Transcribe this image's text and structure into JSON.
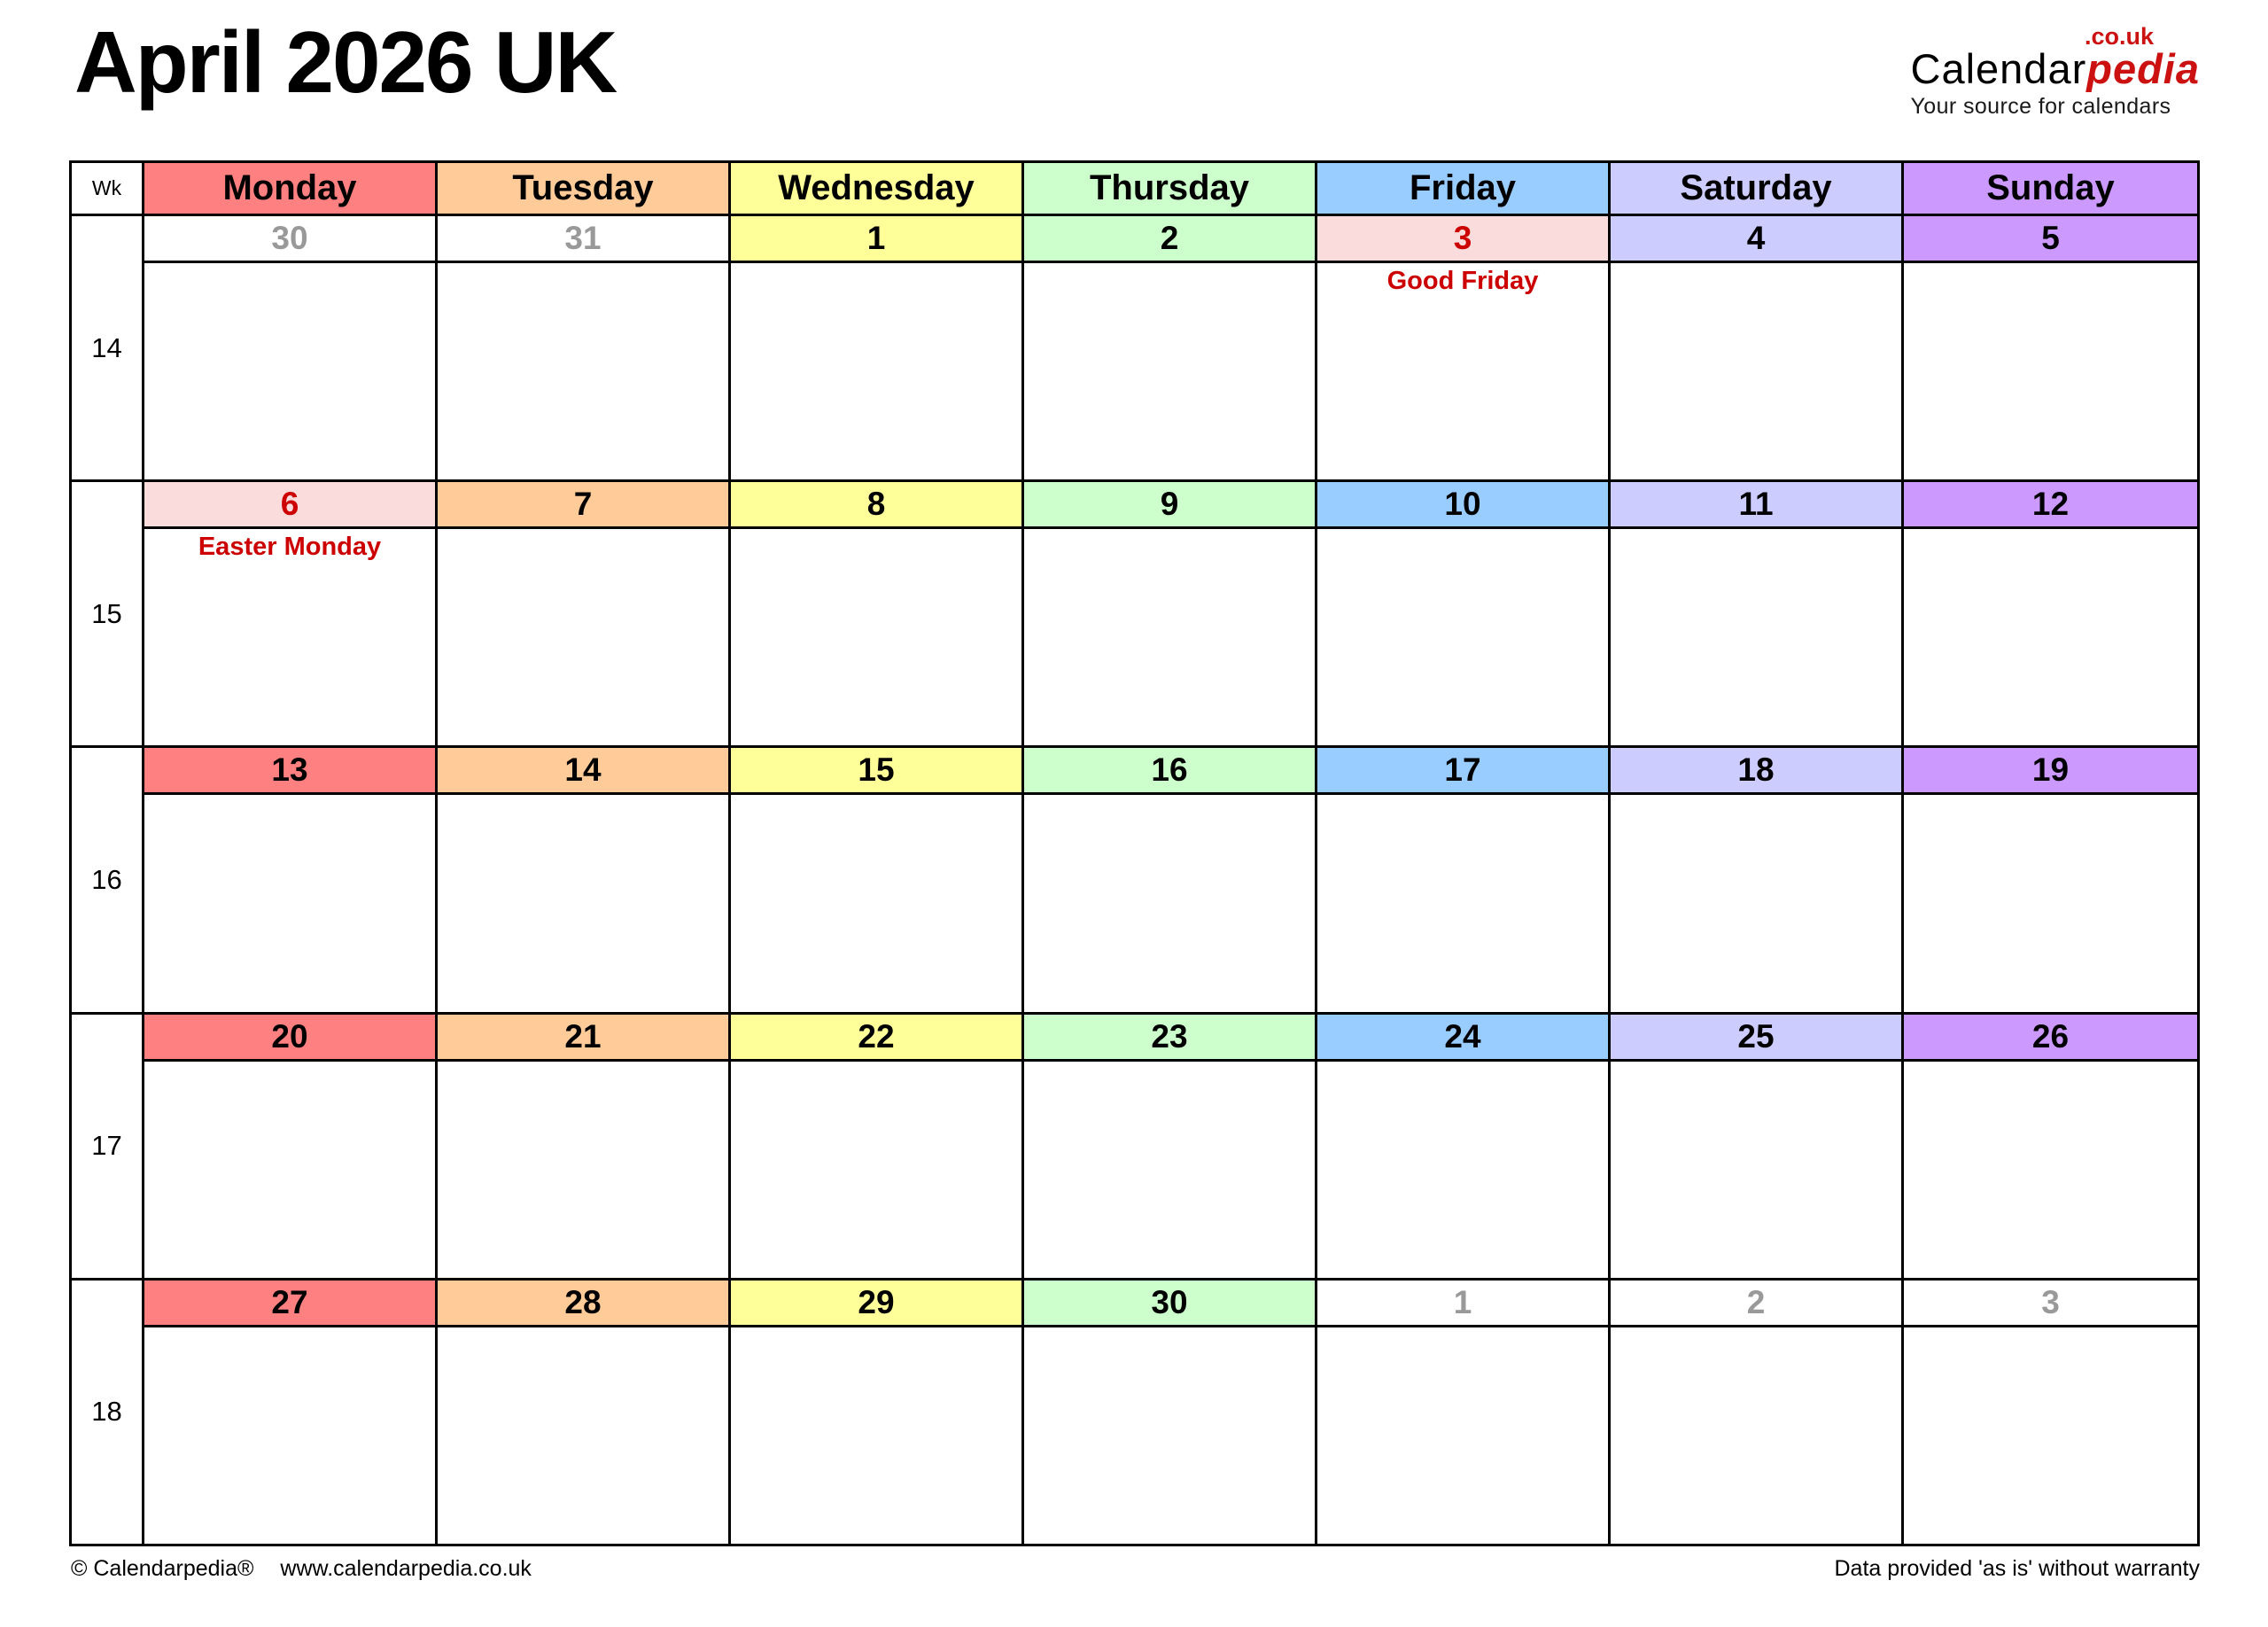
{
  "title": "April 2026 UK",
  "logo": {
    "tld": ".co.uk",
    "brand_black": "Calendar",
    "brand_red": "pedia",
    "tagline": "Your source for calendars"
  },
  "palette": {
    "monday": "#FF8080",
    "tuesday": "#FFCC99",
    "wednesday": "#FFFF99",
    "thursday": "#CCFFCC",
    "friday": "#99CCFF",
    "saturday": "#CCCCFF",
    "sunday": "#CC99FF",
    "holiday_bg": "#FBDCDC",
    "holiday_text": "#CC0000",
    "adjacent_month_text": "#999999",
    "normal_text": "#000000",
    "brand_red": "#CC1111",
    "white": "#FFFFFF"
  },
  "weekday_header": {
    "wk_label": "Wk",
    "days": [
      {
        "label": "Monday",
        "color": "#FF8080"
      },
      {
        "label": "Tuesday",
        "color": "#FFCC99"
      },
      {
        "label": "Wednesday",
        "color": "#FFFF99"
      },
      {
        "label": "Thursday",
        "color": "#CCFFCC"
      },
      {
        "label": "Friday",
        "color": "#99CCFF"
      },
      {
        "label": "Saturday",
        "color": "#CCCCFF"
      },
      {
        "label": "Sunday",
        "color": "#CC99FF"
      }
    ]
  },
  "weeks": [
    {
      "week_number": "14",
      "days": [
        {
          "date": "30",
          "bg": "#FFFFFF",
          "fg": "#999999",
          "note": ""
        },
        {
          "date": "31",
          "bg": "#FFFFFF",
          "fg": "#999999",
          "note": ""
        },
        {
          "date": "1",
          "bg": "#FFFF99",
          "fg": "#000000",
          "note": ""
        },
        {
          "date": "2",
          "bg": "#CCFFCC",
          "fg": "#000000",
          "note": ""
        },
        {
          "date": "3",
          "bg": "#FBDCDC",
          "fg": "#CC0000",
          "note": "Good Friday"
        },
        {
          "date": "4",
          "bg": "#CCCCFF",
          "fg": "#000000",
          "note": ""
        },
        {
          "date": "5",
          "bg": "#CC99FF",
          "fg": "#000000",
          "note": ""
        }
      ]
    },
    {
      "week_number": "15",
      "days": [
        {
          "date": "6",
          "bg": "#FBDCDC",
          "fg": "#CC0000",
          "note": "Easter Monday"
        },
        {
          "date": "7",
          "bg": "#FFCC99",
          "fg": "#000000",
          "note": ""
        },
        {
          "date": "8",
          "bg": "#FFFF99",
          "fg": "#000000",
          "note": ""
        },
        {
          "date": "9",
          "bg": "#CCFFCC",
          "fg": "#000000",
          "note": ""
        },
        {
          "date": "10",
          "bg": "#99CCFF",
          "fg": "#000000",
          "note": ""
        },
        {
          "date": "11",
          "bg": "#CCCCFF",
          "fg": "#000000",
          "note": ""
        },
        {
          "date": "12",
          "bg": "#CC99FF",
          "fg": "#000000",
          "note": ""
        }
      ]
    },
    {
      "week_number": "16",
      "days": [
        {
          "date": "13",
          "bg": "#FF8080",
          "fg": "#000000",
          "note": ""
        },
        {
          "date": "14",
          "bg": "#FFCC99",
          "fg": "#000000",
          "note": ""
        },
        {
          "date": "15",
          "bg": "#FFFF99",
          "fg": "#000000",
          "note": ""
        },
        {
          "date": "16",
          "bg": "#CCFFCC",
          "fg": "#000000",
          "note": ""
        },
        {
          "date": "17",
          "bg": "#99CCFF",
          "fg": "#000000",
          "note": ""
        },
        {
          "date": "18",
          "bg": "#CCCCFF",
          "fg": "#000000",
          "note": ""
        },
        {
          "date": "19",
          "bg": "#CC99FF",
          "fg": "#000000",
          "note": ""
        }
      ]
    },
    {
      "week_number": "17",
      "days": [
        {
          "date": "20",
          "bg": "#FF8080",
          "fg": "#000000",
          "note": ""
        },
        {
          "date": "21",
          "bg": "#FFCC99",
          "fg": "#000000",
          "note": ""
        },
        {
          "date": "22",
          "bg": "#FFFF99",
          "fg": "#000000",
          "note": ""
        },
        {
          "date": "23",
          "bg": "#CCFFCC",
          "fg": "#000000",
          "note": ""
        },
        {
          "date": "24",
          "bg": "#99CCFF",
          "fg": "#000000",
          "note": ""
        },
        {
          "date": "25",
          "bg": "#CCCCFF",
          "fg": "#000000",
          "note": ""
        },
        {
          "date": "26",
          "bg": "#CC99FF",
          "fg": "#000000",
          "note": ""
        }
      ]
    },
    {
      "week_number": "18",
      "days": [
        {
          "date": "27",
          "bg": "#FF8080",
          "fg": "#000000",
          "note": ""
        },
        {
          "date": "28",
          "bg": "#FFCC99",
          "fg": "#000000",
          "note": ""
        },
        {
          "date": "29",
          "bg": "#FFFF99",
          "fg": "#000000",
          "note": ""
        },
        {
          "date": "30",
          "bg": "#CCFFCC",
          "fg": "#000000",
          "note": ""
        },
        {
          "date": "1",
          "bg": "#FFFFFF",
          "fg": "#999999",
          "note": ""
        },
        {
          "date": "2",
          "bg": "#FFFFFF",
          "fg": "#999999",
          "note": ""
        },
        {
          "date": "3",
          "bg": "#FFFFFF",
          "fg": "#999999",
          "note": ""
        }
      ]
    }
  ],
  "footer": {
    "left_copyright": "© Calendarpedia®",
    "left_url": "www.calendarpedia.co.uk",
    "right": "Data provided 'as is' without warranty"
  }
}
